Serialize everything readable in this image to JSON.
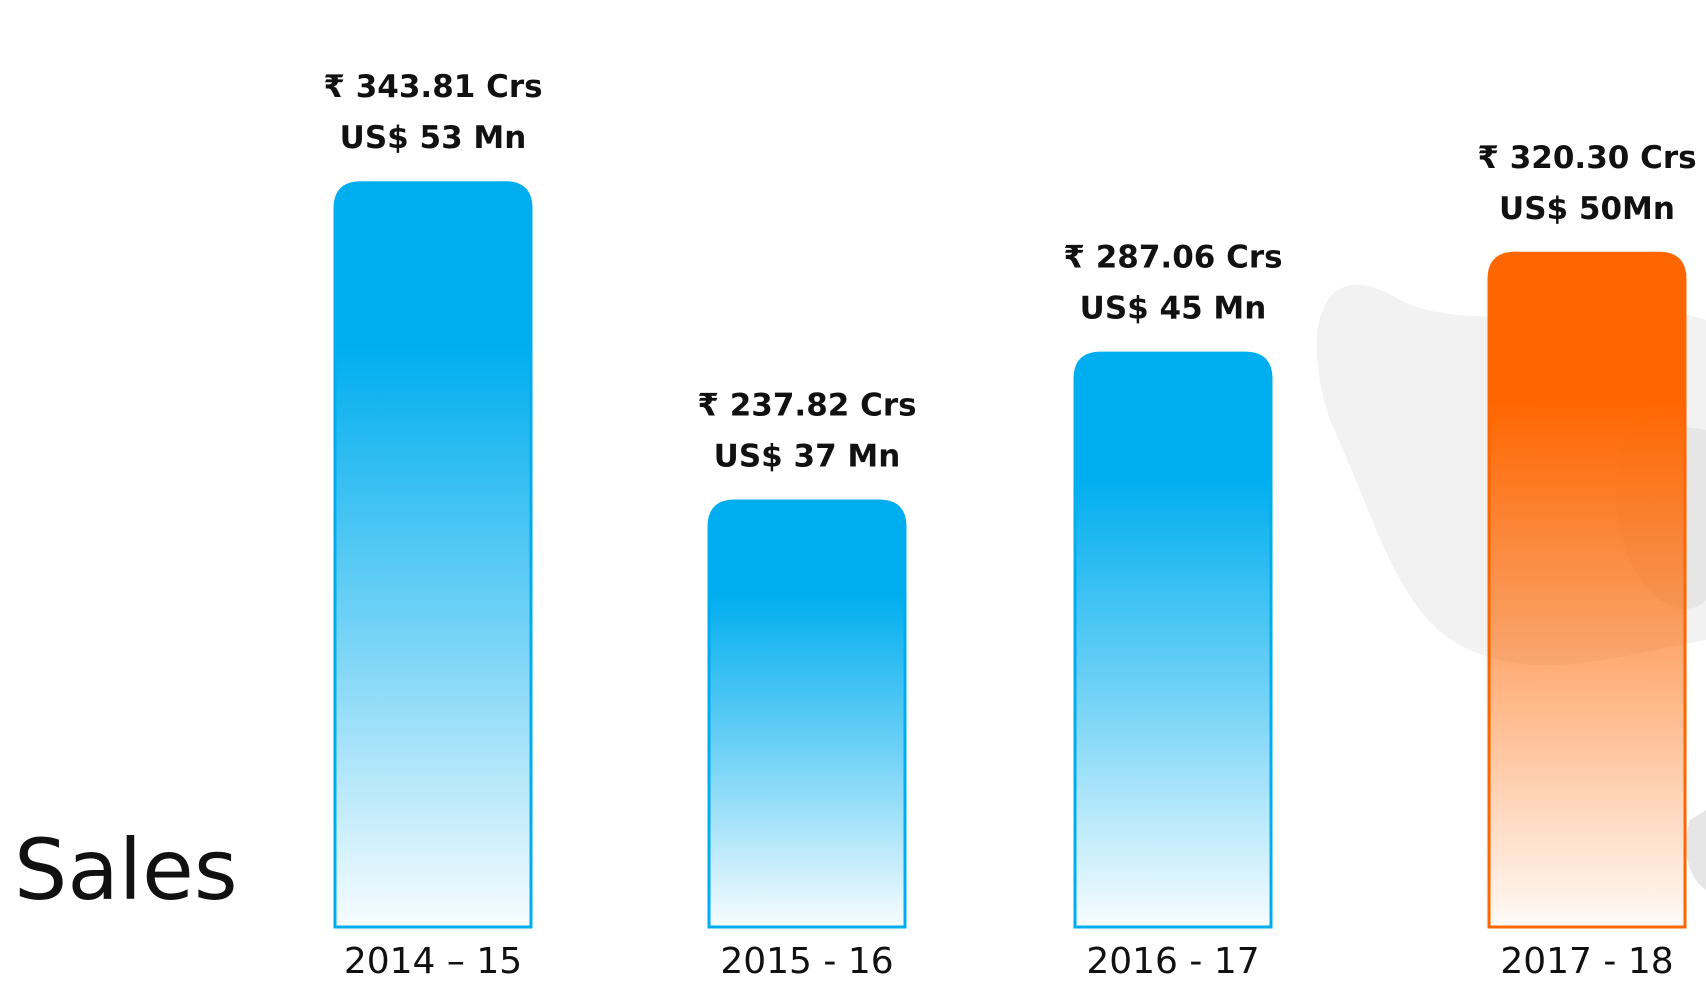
{
  "chart_data": {
    "type": "bar",
    "title": "Sales",
    "categories": [
      "2014 – 15",
      "2015 - 16",
      "2016 - 17",
      "2017 - 18"
    ],
    "values": [
      343.81,
      237.82,
      287.06,
      320.3
    ],
    "value_labels": [
      "₹ 343.81 Crs",
      "₹ 237.82 Crs",
      "₹ 287.06 Crs",
      "₹ 320.30 Crs"
    ],
    "usd_values": [
      53,
      37,
      45,
      50
    ],
    "usd_value_labels": [
      "US$ 53 Mn",
      "US$ 37 Mn",
      "US$ 45 Mn",
      "US$ 50Mn"
    ],
    "colors": [
      "#00aeef",
      "#00aeef",
      "#00aeef",
      "#ff6600"
    ],
    "ylim": [
      96,
      380
    ]
  }
}
